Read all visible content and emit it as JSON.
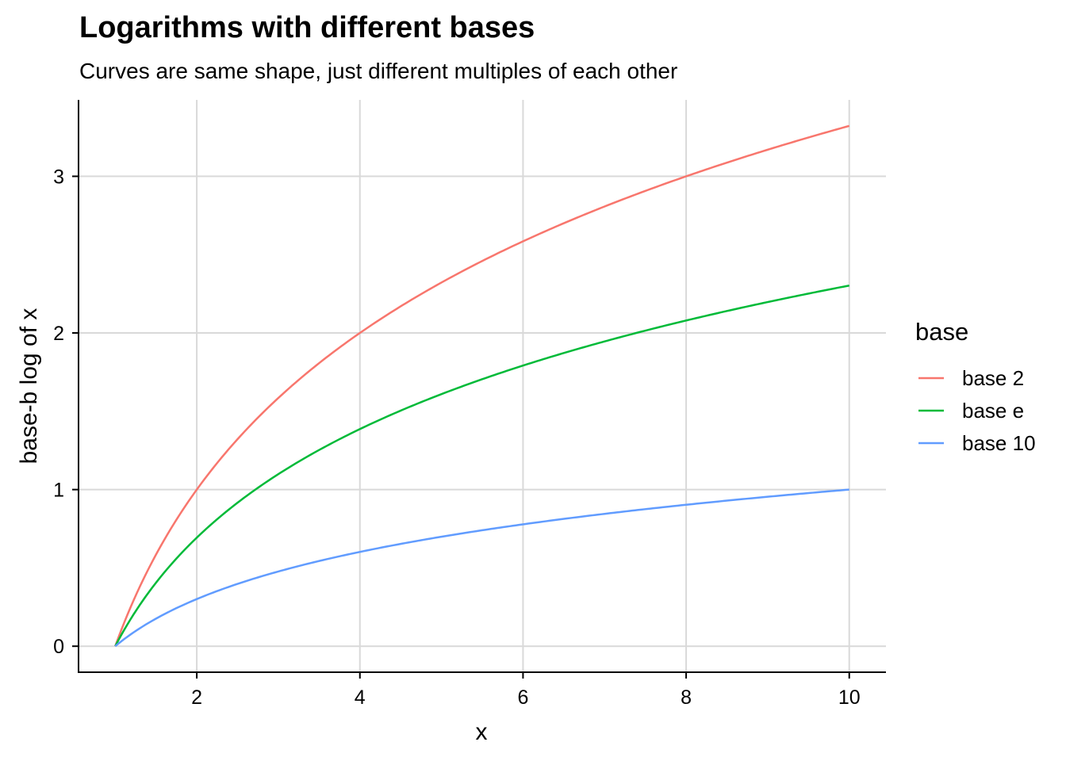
{
  "chart_data": {
    "type": "line",
    "title": "Logarithms with different bases",
    "subtitle": "Curves are same shape, just different multiples of each other",
    "xlabel": "x",
    "ylabel": "base-b log of x",
    "xlim": [
      0.55,
      10.45
    ],
    "ylim": [
      -0.166,
      3.488
    ],
    "x_ticks": [
      2,
      4,
      6,
      8,
      10
    ],
    "y_ticks": [
      0,
      1,
      2,
      3
    ],
    "grid": true,
    "legend": {
      "title": "base",
      "position": "right"
    },
    "x_range": [
      1,
      10
    ],
    "series": [
      {
        "name": "base 2",
        "base": 2,
        "color": "#F8766D"
      },
      {
        "name": "base e",
        "base": 2.718281828,
        "color": "#00BA38"
      },
      {
        "name": "base 10",
        "base": 10,
        "color": "#619CFF"
      }
    ]
  }
}
